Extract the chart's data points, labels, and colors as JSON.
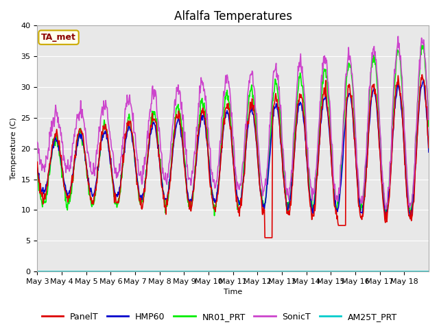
{
  "title": "Alfalfa Temperatures",
  "xlabel": "Time",
  "ylabel": "Temperature (C)",
  "ylim": [
    0,
    40
  ],
  "bg_color": "#e8e8e8",
  "fig_color": "#ffffff",
  "annotation_text": "TA_met",
  "annotation_bg": "#ffffee",
  "annotation_text_color": "#8b0000",
  "annotation_edge_color": "#ccaa00",
  "series_colors": {
    "PanelT": "#dd0000",
    "HMP60": "#0000cc",
    "NR01_PRT": "#00ee00",
    "SonicT": "#cc44cc",
    "AM25T_PRT": "#00cccc"
  },
  "lw": 1.2,
  "legend_fontsize": 9,
  "title_fontsize": 12,
  "x_tick_labels": [
    "May 3",
    "May 4",
    "May 5",
    "May 6",
    "May 7",
    "May 8",
    "May 9",
    "May 10",
    "May 11",
    "May 12",
    "May 13",
    "May 14",
    "May 15",
    "May 16",
    "May 17",
    "May 18"
  ]
}
